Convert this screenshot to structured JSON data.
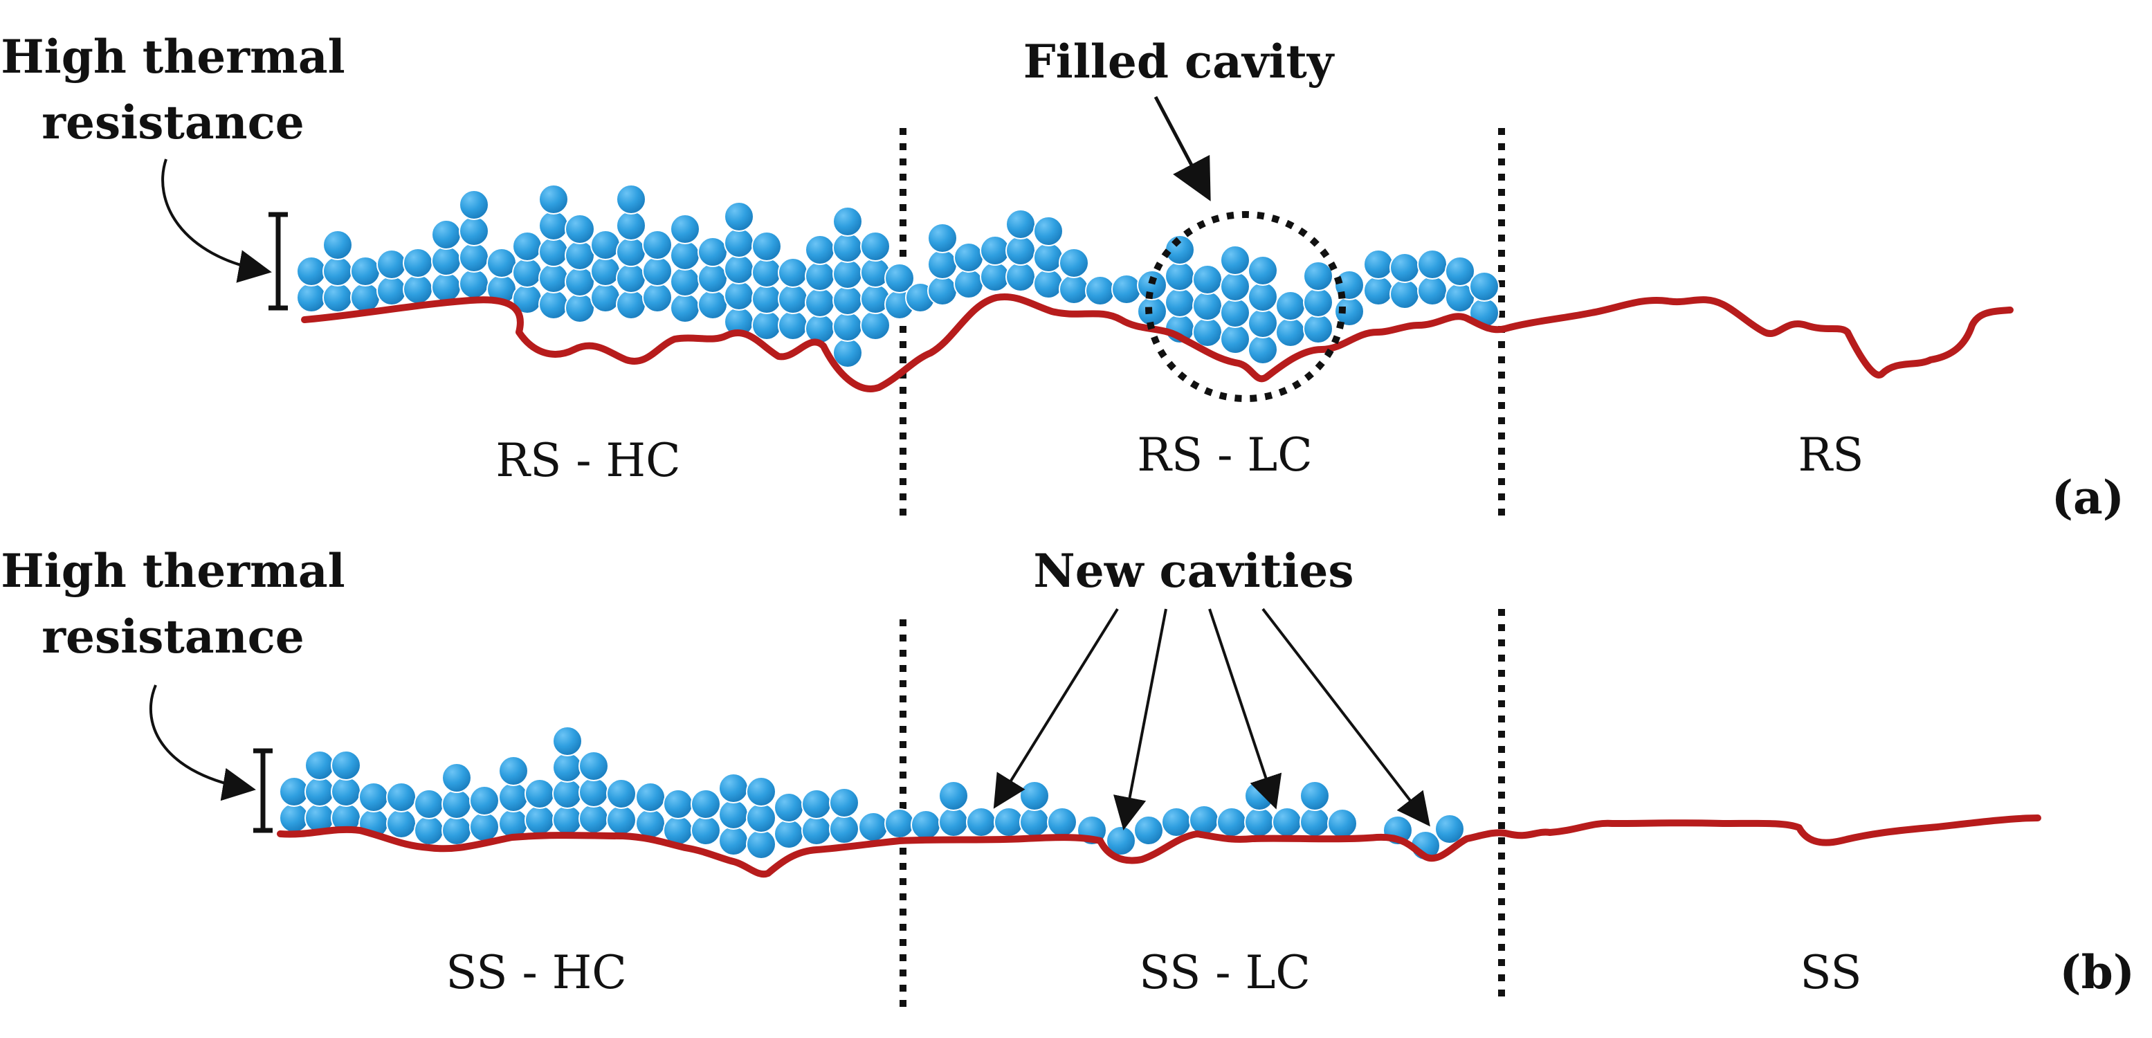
{
  "panel_a": {
    "tag": "(a)",
    "callout_high_resistance": {
      "line1": "High thermal",
      "line2": "resistance"
    },
    "callout_cavity": "Filled cavity",
    "regions": [
      "RS - HC",
      "RS - LC",
      "RS"
    ]
  },
  "panel_b": {
    "tag": "(b)",
    "callout_high_resistance": {
      "line1": "High thermal",
      "line2": "resistance"
    },
    "callout_cavity": "New cavities",
    "regions": [
      "SS - HC",
      "SS - LC",
      "SS"
    ]
  },
  "colors": {
    "particle": "#2f9fe0",
    "particle_edge": "#ffffff",
    "surface": "#b71c1c",
    "divider": "#111111",
    "text": "#111111"
  }
}
